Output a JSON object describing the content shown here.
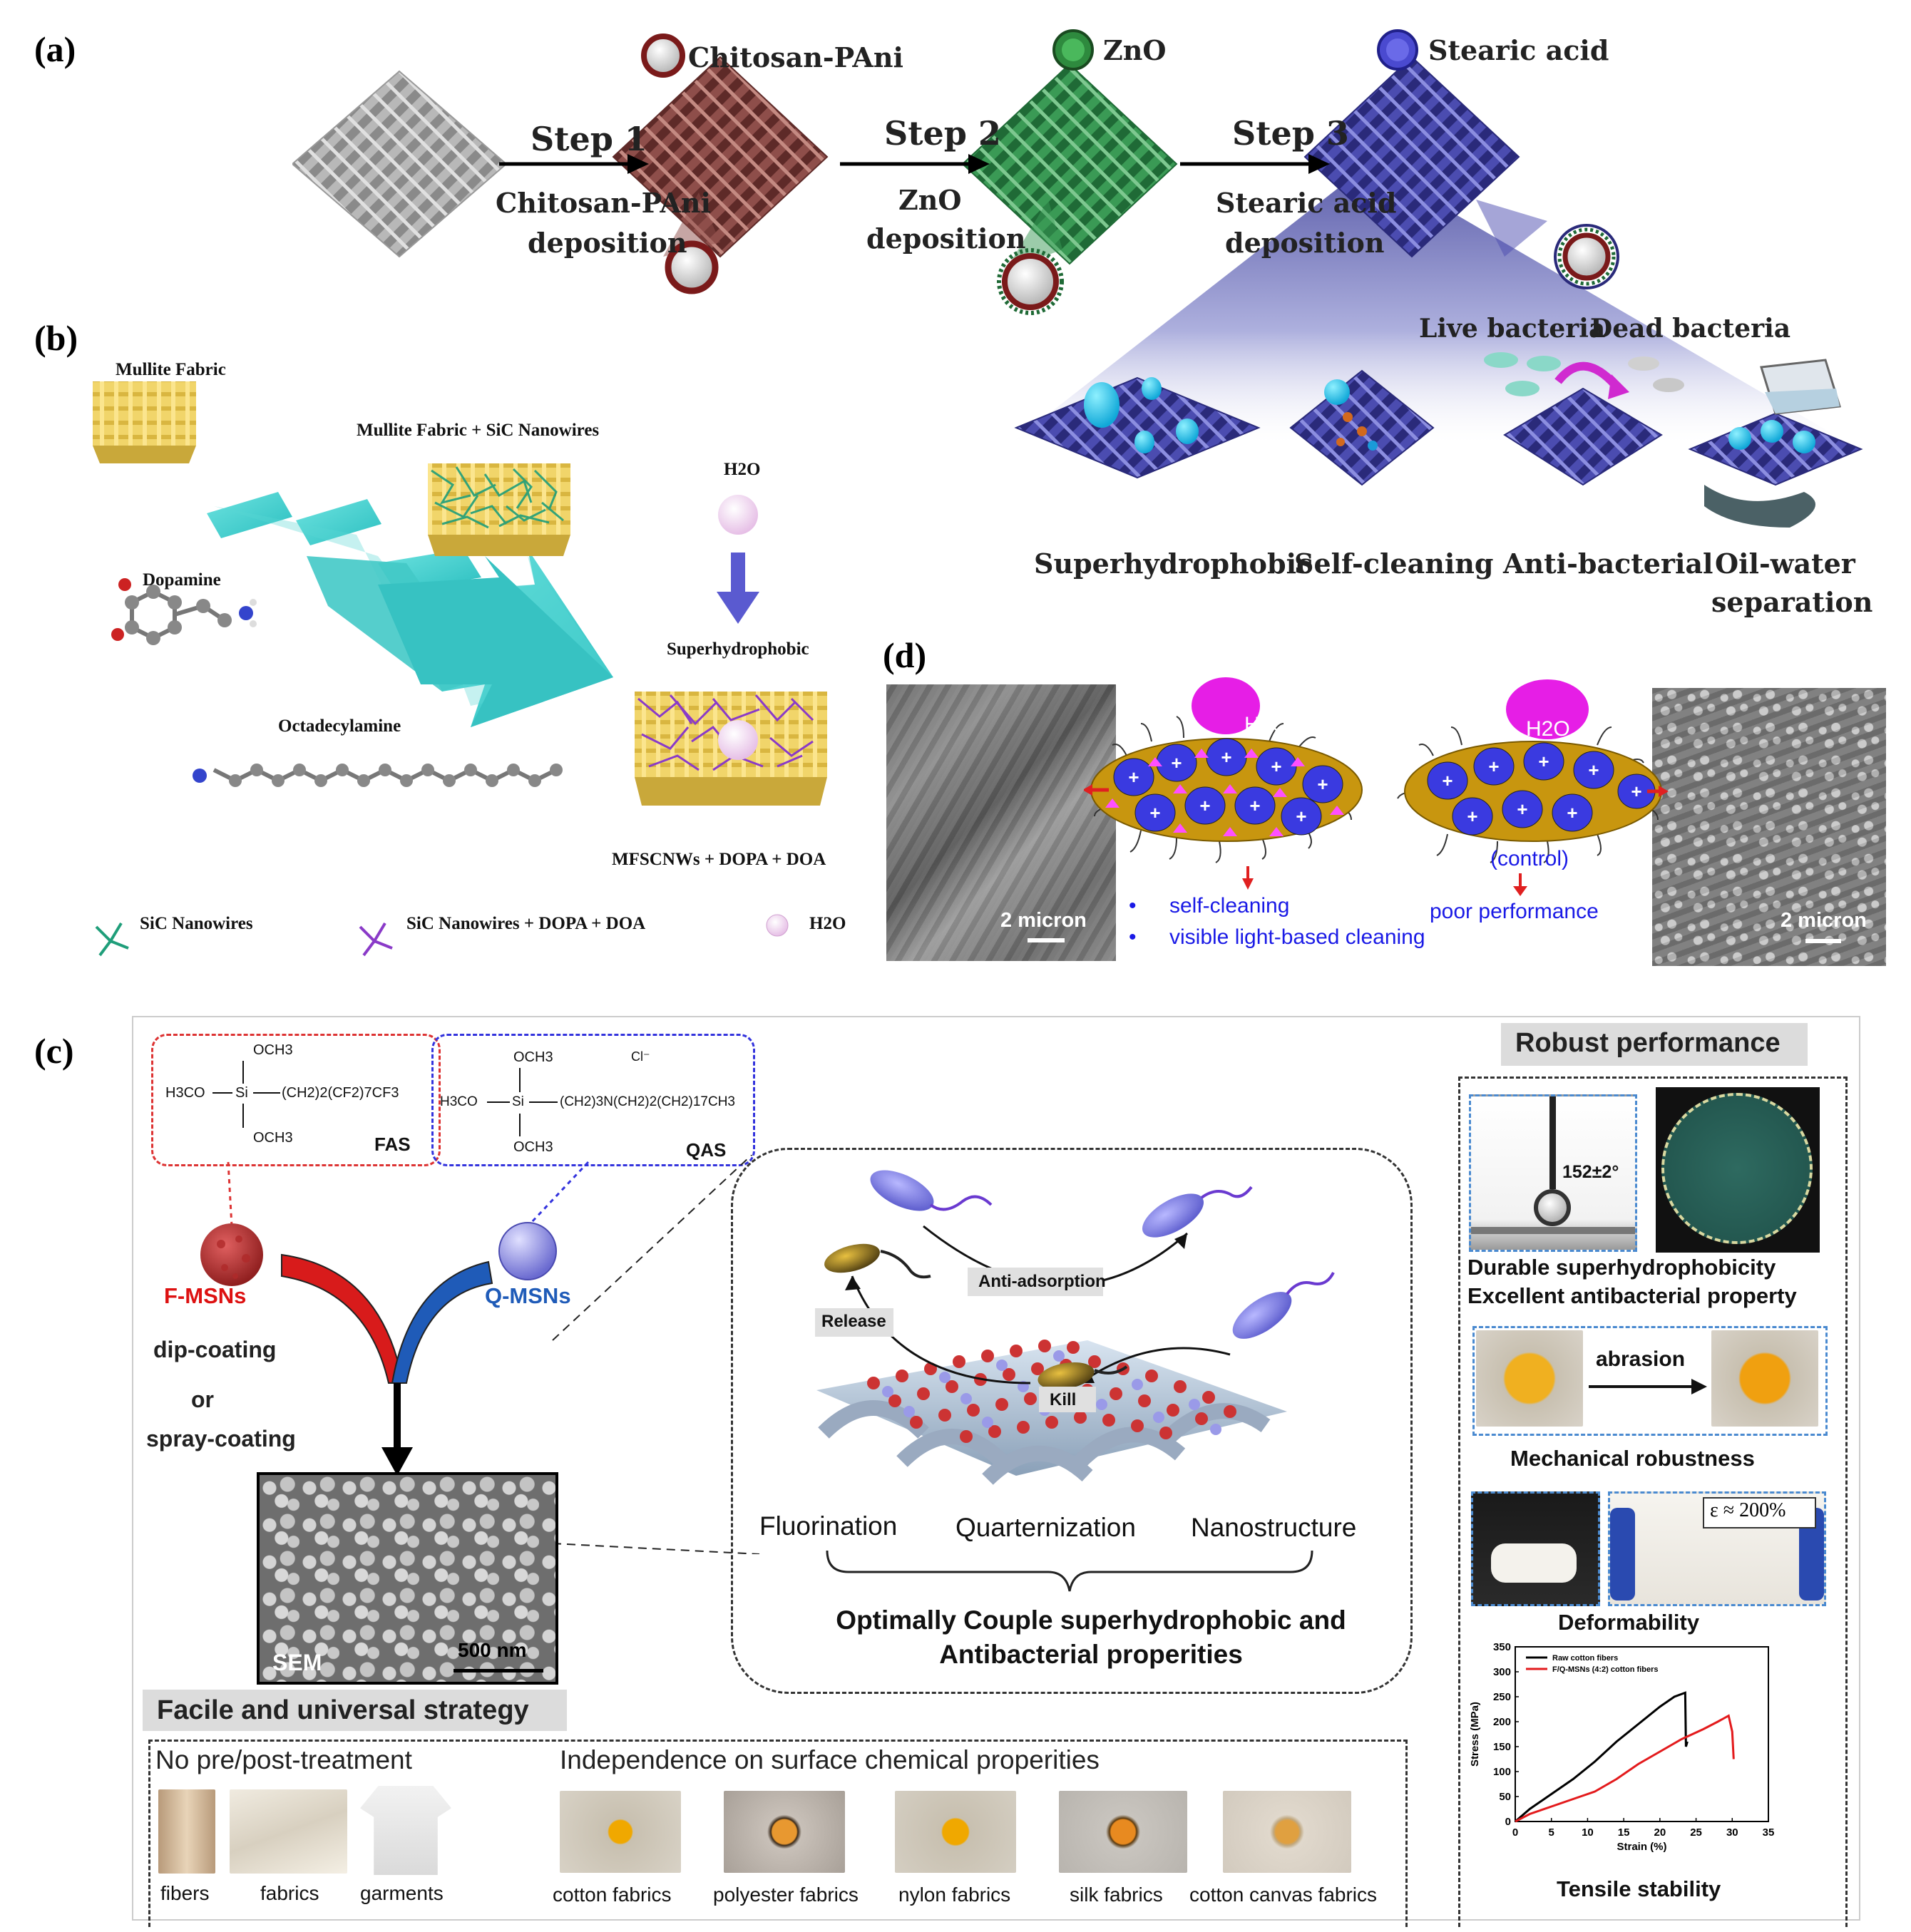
{
  "panels": {
    "a": "(a)",
    "b": "(b)",
    "c": "(c)",
    "d": "(d)"
  },
  "panel_a": {
    "legend": {
      "chitosan": "Chitosan-PAni",
      "zno": "ZnO",
      "stearic": "Stearic acid"
    },
    "steps": [
      {
        "title": "Step 1",
        "line1": "Chitosan-PAni",
        "line2": "deposition"
      },
      {
        "title": "Step 2",
        "line1": "ZnO",
        "line2": "deposition"
      },
      {
        "title": "Step 3",
        "line1": "Stearic acid",
        "line2": "deposition"
      }
    ],
    "bacteria": {
      "live": "Live bacteria",
      "dead": "Dead bacteria"
    },
    "properties": [
      "Superhydrophobic",
      "Self-cleaning",
      "Anti-bacterial",
      "Oil-water",
      "separation"
    ]
  },
  "panel_b": {
    "mullite": "Mullite Fabric",
    "mullite_sic": "Mullite Fabric + SiC Nanowires",
    "dopamine": "Dopamine",
    "octadecylamine": "Octadecylamine",
    "h2o_top": "H2O",
    "superhydrophobic": "Superhydrophobic",
    "result": "MFSCNWs + DOPA + DOA",
    "legend": [
      "SiC Nanowires",
      "SiC Nanowires + DOPA + DOA",
      "H2O"
    ]
  },
  "panel_d": {
    "scale_left": "2 micron",
    "scale_right": "2 micron",
    "h2o": "H2O",
    "control": "(control)",
    "poor": "poor performance",
    "bullets": [
      "self-cleaning",
      "visible light-based cleaning"
    ]
  },
  "panel_c": {
    "fas": {
      "top": "OCH3",
      "left": "H3CO",
      "chain": "(CH2)2(CF2)7CF3",
      "bottom": "OCH3",
      "label": "FAS"
    },
    "qas": {
      "top": "OCH3",
      "left": "H3CO",
      "chain": "(CH2)3N(CH2)2(CH2)17CH3",
      "bottom": "OCH3",
      "label": "QAS",
      "ion": "Cl⁻"
    },
    "f_msns": "F-MSNs",
    "q_msns": "Q-MSNs",
    "coating": [
      "dip-coating",
      "or",
      "spray-coating"
    ],
    "sem": "SEM",
    "sem_scale": "500 nm",
    "mech": {
      "anti": "Anti-adsorption",
      "release": "Release",
      "kill": "Kill"
    },
    "factors": [
      "Fluorination",
      "Quarternization",
      "Nanostructure"
    ],
    "optimal": [
      "Optimally Couple superhydrophobic and",
      "Antibacterial properities"
    ],
    "facile_title": "Facile and  universal strategy",
    "no_treatment": "No pre/post-treatment",
    "independence": "Independence on surface chemical properities",
    "items_left": [
      "fibers",
      "fabrics",
      "garments"
    ],
    "items_right": [
      "cotton fabrics",
      "polyester fabrics",
      "nylon fabrics",
      "silk fabrics",
      "cotton canvas fabrics"
    ],
    "robust_title": "Robust performance",
    "angle": "152±2°",
    "durable": "Durable superhydrophobicity",
    "antibacterial": "Excellent antibacterial property",
    "abrasion": "abrasion",
    "mech_robust": "Mechanical robustness",
    "strain_label": "ε ≈ 200%",
    "deform": "Deformability",
    "tensile": "Tensile stability"
  },
  "chart_data": {
    "type": "line",
    "xlabel": "Strain (%)",
    "ylabel": "Stress (MPa)",
    "xlim": [
      0,
      35
    ],
    "ylim": [
      0,
      350
    ],
    "xticks": [
      0,
      5,
      10,
      15,
      20,
      25,
      30,
      35
    ],
    "yticks": [
      0,
      50,
      100,
      150,
      200,
      250,
      300,
      350
    ],
    "legend_position": "top-left",
    "series": [
      {
        "name": "Raw cotton fibers",
        "color": "#000000",
        "x": [
          0,
          2,
          5,
          8,
          11,
          14,
          17,
          20,
          22,
          23.5,
          23.6,
          23.8
        ],
        "y": [
          0,
          25,
          55,
          85,
          120,
          160,
          195,
          230,
          250,
          258,
          150,
          160
        ]
      },
      {
        "name": "F/Q-MSNs (4:2) cotton fibers",
        "color": "#e31a1c",
        "x": [
          0,
          2,
          5,
          8,
          11,
          14,
          17,
          20,
          23,
          26,
          28,
          29.5,
          30,
          30.2
        ],
        "y": [
          0,
          15,
          30,
          45,
          60,
          85,
          115,
          140,
          165,
          185,
          200,
          212,
          180,
          125
        ]
      }
    ]
  }
}
